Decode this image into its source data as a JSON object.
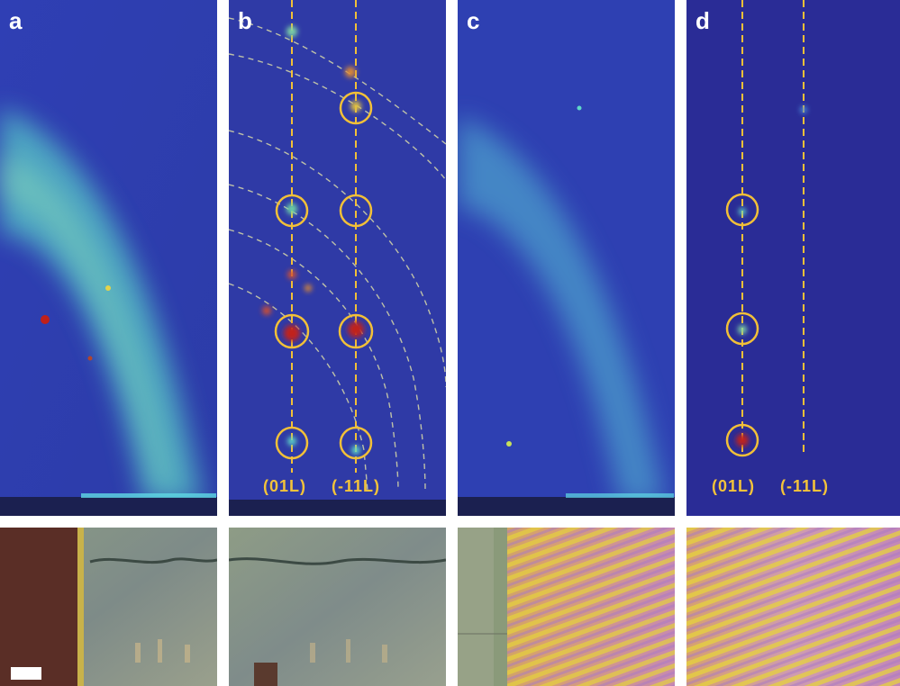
{
  "panels": {
    "a": {
      "label": "a"
    },
    "b": {
      "label": "b",
      "index_labels": [
        "(01L)",
        "(-11L)"
      ]
    },
    "c": {
      "label": "c"
    },
    "d": {
      "label": "d",
      "index_labels": [
        "(01L)",
        "(-11L)"
      ]
    }
  },
  "colors": {
    "background_blue": "#2d3fb0",
    "background_dark_blue": "#2a2c9a",
    "diffraction_cyan": "#4fd1d8",
    "hotspot_red": "#c0201a",
    "annotation_gold": "#f2c038"
  },
  "micrographs": {
    "note_icons": [
      "scale-bar"
    ]
  }
}
